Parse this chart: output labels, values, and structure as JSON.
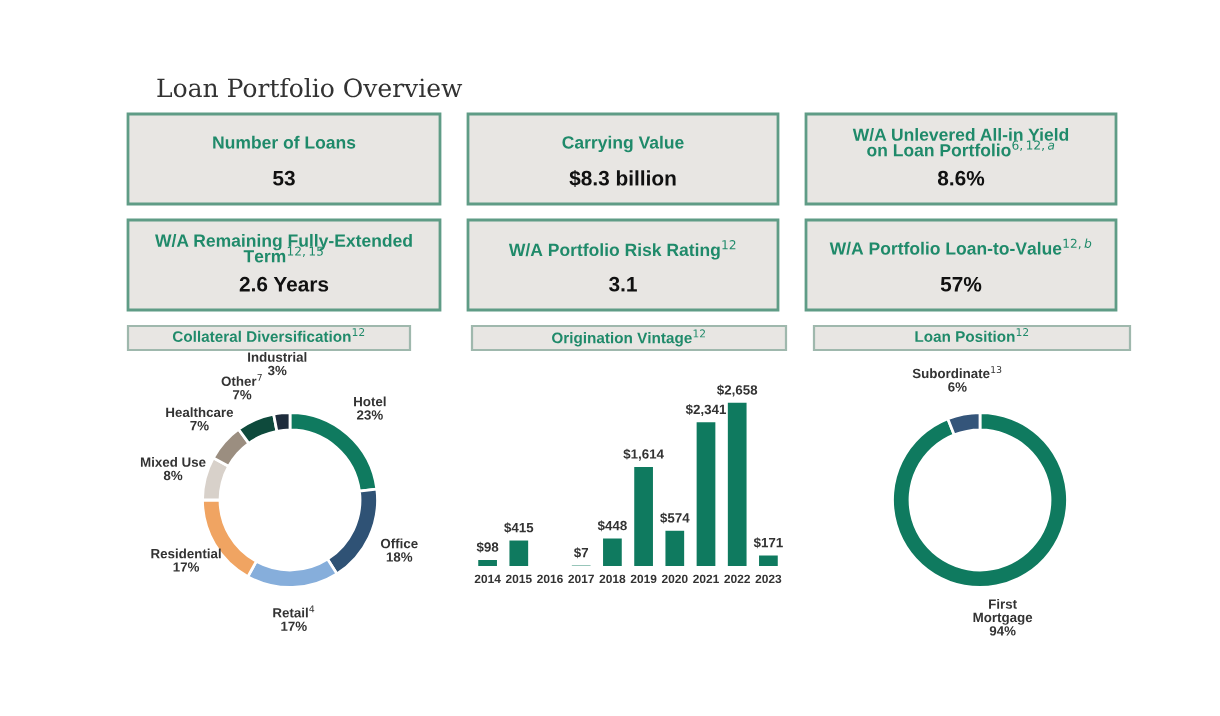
{
  "chart_data": [
    {
      "type": "other",
      "title": "Loan Portfolio Overview",
      "annotations": [
        "Number of Loans",
        "53",
        "Carrying Value",
        "$8.3 billion",
        "W/A Unlevered All-in Yield\non Loan Portfolio$^{6,12,a}$",
        "8.6%",
        "W/A Remaining Fully-Extended\nTerm$^{12,15}$",
        "2.6 Years",
        "W/A Portfolio Risk Rating$^{12}$",
        "3.1",
        "W/A Portfolio Loan-to-Value$^{12,b}$",
        "57%"
      ]
    },
    {
      "type": "donut",
      "title": "Collateral Diversification$^{12}$",
      "categories": [
        "Hotel",
        "Office",
        "Retail$^{4}$",
        "Residential",
        "Mixed Use",
        "Healthcare",
        "Other$^{7}$",
        "Industrial"
      ],
      "values": [
        23,
        18,
        17,
        17,
        8,
        7,
        7,
        3
      ],
      "value_labels": [
        "23%",
        "18%",
        "17%",
        "17%",
        "8%",
        "7%",
        "7%",
        "3%"
      ],
      "colors": [
        "#0f7a5f",
        "#2f5275",
        "#86aedb",
        "#f0a462",
        "#d8d1ca",
        "#9b8e80",
        "#0e4a3c",
        "#1e2c3c"
      ]
    },
    {
      "type": "bar",
      "title": "Origination Vintage$^{12}$",
      "categories": [
        "2014",
        "2015",
        "2016",
        "2017",
        "2018",
        "2019",
        "2020",
        "2021",
        "2022",
        "2023"
      ],
      "values": [
        98,
        415,
        null,
        7,
        448,
        1614,
        574,
        2341,
        2658,
        171
      ],
      "value_labels": [
        "$98",
        "$415",
        null,
        "$7",
        "$448",
        "$1,614",
        "$574",
        "$2,341",
        "$2,658",
        "$171"
      ],
      "color": "#0f7a5f"
    },
    {
      "type": "donut",
      "title": "Loan Position$^{12}$",
      "categories": [
        "First\nMortgage",
        "Subordinate$^{13}$"
      ],
      "values": [
        94,
        6
      ],
      "value_labels": [
        "94%",
        "6%"
      ],
      "colors": [
        "#0f7a5f",
        "#34557a"
      ]
    }
  ]
}
